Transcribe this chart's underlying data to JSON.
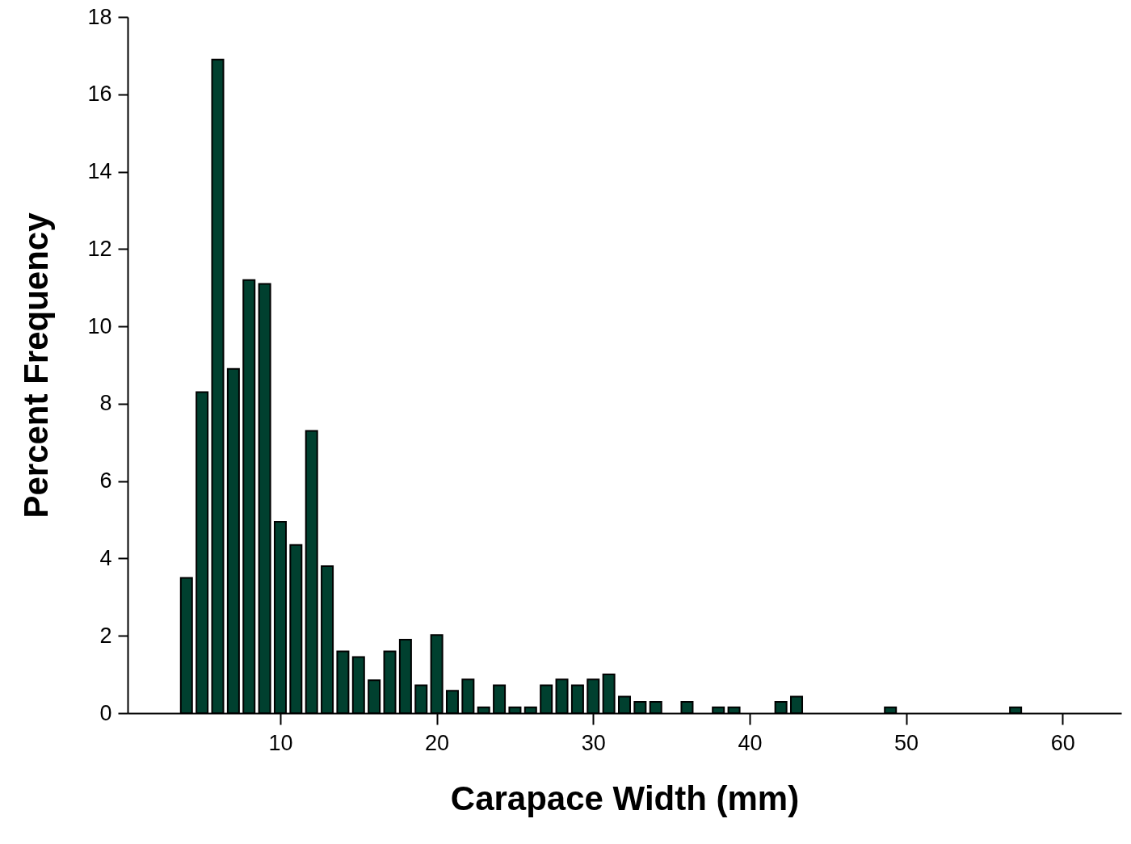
{
  "chart_data": {
    "type": "bar",
    "xlabel": "Carapace Width (mm)",
    "ylabel": "Percent Frequency",
    "color": "#00402f",
    "x": [
      4,
      5,
      6,
      7,
      8,
      9,
      10,
      11,
      12,
      13,
      14,
      15,
      16,
      17,
      18,
      19,
      20,
      21,
      22,
      23,
      24,
      25,
      26,
      27,
      28,
      29,
      30,
      31,
      32,
      33,
      34,
      36,
      38,
      39,
      42,
      43,
      49,
      57
    ],
    "values": [
      3.5,
      8.3,
      16.9,
      8.9,
      11.2,
      11.1,
      4.95,
      4.35,
      7.3,
      3.8,
      1.6,
      1.45,
      0.85,
      1.6,
      1.9,
      0.72,
      2.02,
      0.58,
      0.87,
      0.15,
      0.72,
      0.15,
      0.15,
      0.72,
      0.87,
      0.72,
      0.87,
      1.0,
      0.43,
      0.29,
      0.29,
      0.29,
      0.15,
      0.15,
      0.29,
      0.43,
      0.15,
      0.15
    ],
    "xlim": [
      0.5,
      63.5
    ],
    "xticks": [
      10,
      20,
      30,
      40,
      50,
      60
    ],
    "ylim": [
      0,
      18
    ],
    "yticks": [
      0,
      2,
      4,
      6,
      8,
      10,
      12,
      14,
      16,
      18
    ]
  }
}
